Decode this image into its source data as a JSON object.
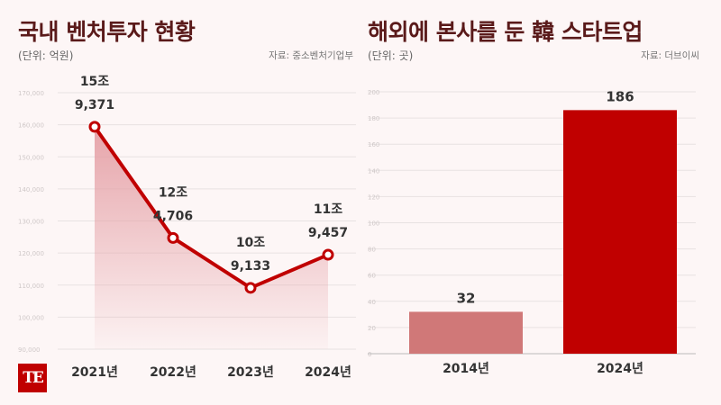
{
  "colors": {
    "title": "#5a1a1a",
    "line": "#c00000",
    "area_top": "#e5a0a6",
    "bar_2014": "#d07878",
    "bar_2024": "#c00000",
    "grid": "#e8e2e2"
  },
  "left": {
    "title": "국내 벤처투자 현황",
    "unit": "(단위: 억원)",
    "source": "자료: 중소벤처기업부"
  },
  "right": {
    "title": "해외에 본사를 둔 韓 스타트업",
    "unit": "(단위: 곳)",
    "source": "자료: 더브이씨"
  },
  "logo": {
    "text": "TE"
  },
  "chart_data": [
    {
      "type": "area",
      "categories": [
        "2021년",
        "2022년",
        "2023년",
        "2024년"
      ],
      "values": [
        159371,
        124706,
        109133,
        119457
      ],
      "point_labels": [
        [
          "15조",
          "9,371"
        ],
        [
          "12조",
          "4,706"
        ],
        [
          "10조",
          "9,133"
        ],
        [
          "11조",
          "9,457"
        ]
      ],
      "ylim": [
        90000,
        170000
      ],
      "yticks": [
        90000,
        100000,
        110000,
        120000,
        130000,
        140000,
        150000,
        160000,
        170000
      ],
      "ytick_labels": [
        "90,000",
        "100,000",
        "110,000",
        "120,000",
        "130,000",
        "140,000",
        "150,000",
        "160,000",
        "170,000"
      ],
      "grid": true
    },
    {
      "type": "bar",
      "categories": [
        "2014년",
        "2024년"
      ],
      "values": [
        32,
        186
      ],
      "value_labels": [
        "32",
        "186"
      ],
      "ylim": [
        0,
        200
      ],
      "yticks": [
        0,
        20,
        40,
        60,
        80,
        100,
        120,
        140,
        160,
        180,
        200
      ],
      "ytick_labels": [
        "0",
        "20",
        "40",
        "60",
        "80",
        "100",
        "120",
        "140",
        "160",
        "180",
        "200"
      ],
      "grid": true
    }
  ]
}
